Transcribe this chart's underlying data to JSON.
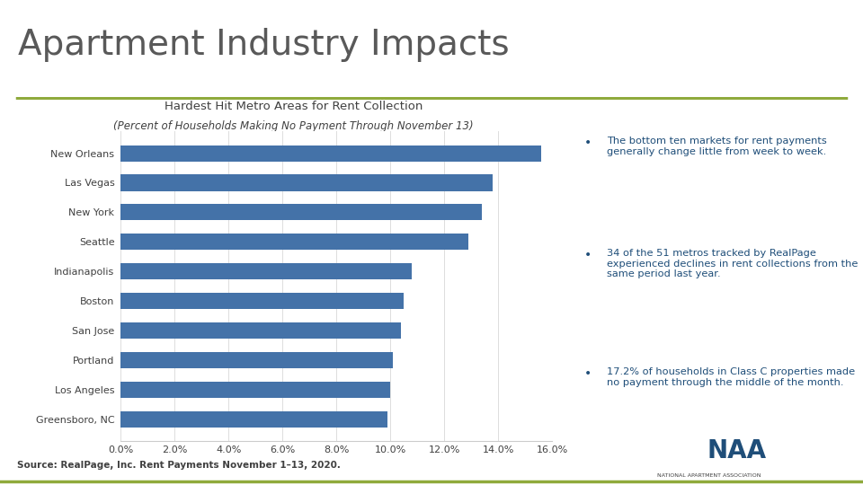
{
  "main_title": "Apartment Industry Impacts",
  "chart_title": "Hardest Hit Metro Areas for Rent Collection",
  "chart_subtitle": "(Percent of Households Making No Payment Through November 13)",
  "categories": [
    "Greensboro, NC",
    "Los Angeles",
    "Portland",
    "San Jose",
    "Boston",
    "Indianapolis",
    "Seattle",
    "New York",
    "Las Vegas",
    "New Orleans"
  ],
  "values": [
    0.099,
    0.1,
    0.101,
    0.104,
    0.105,
    0.108,
    0.129,
    0.134,
    0.138,
    0.156
  ],
  "bar_color": "#4472a8",
  "background_color": "#ffffff",
  "xlim": [
    0,
    0.16
  ],
  "xtick_labels": [
    "0.0%",
    "2.0%",
    "4.0%",
    "6.0%",
    "8.0%",
    "10.0%",
    "12.0%",
    "14.0%",
    "16.0%"
  ],
  "xtick_values": [
    0.0,
    0.02,
    0.04,
    0.06,
    0.08,
    0.1,
    0.12,
    0.14,
    0.16
  ],
  "source_text": "Source: RealPage, Inc. Rent Payments November 1–13, 2020.",
  "title_color": "#595959",
  "chart_title_color": "#404040",
  "bar_label_color": "#404040",
  "separator_color": "#8faa3c",
  "bullet_color": "#1f4e79",
  "bullet_points": [
    "The bottom ten markets for rent payments generally change little from week to week.",
    "34 of the 51 metros tracked by RealPage experienced declines in rent collections from the same period last year.",
    "17.2% of households in Class C properties made no payment through the middle of the month."
  ]
}
